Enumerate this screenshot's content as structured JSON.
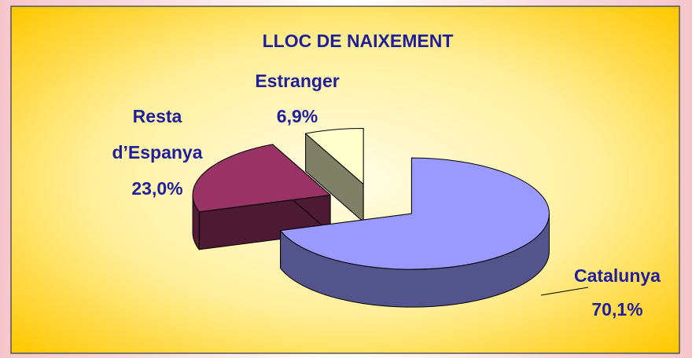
{
  "chart_data": {
    "type": "pie",
    "title": "LLOC DE NAIXEMENT",
    "categories": [
      "Catalunya",
      "Resta d’Espanya",
      "Estranger"
    ],
    "values": [
      70.1,
      23.0,
      6.9
    ],
    "value_labels": [
      "70,1%",
      "23,0%",
      "6,9%"
    ],
    "colors": [
      "#9999ff",
      "#993366",
      "#ffffcc"
    ]
  }
}
